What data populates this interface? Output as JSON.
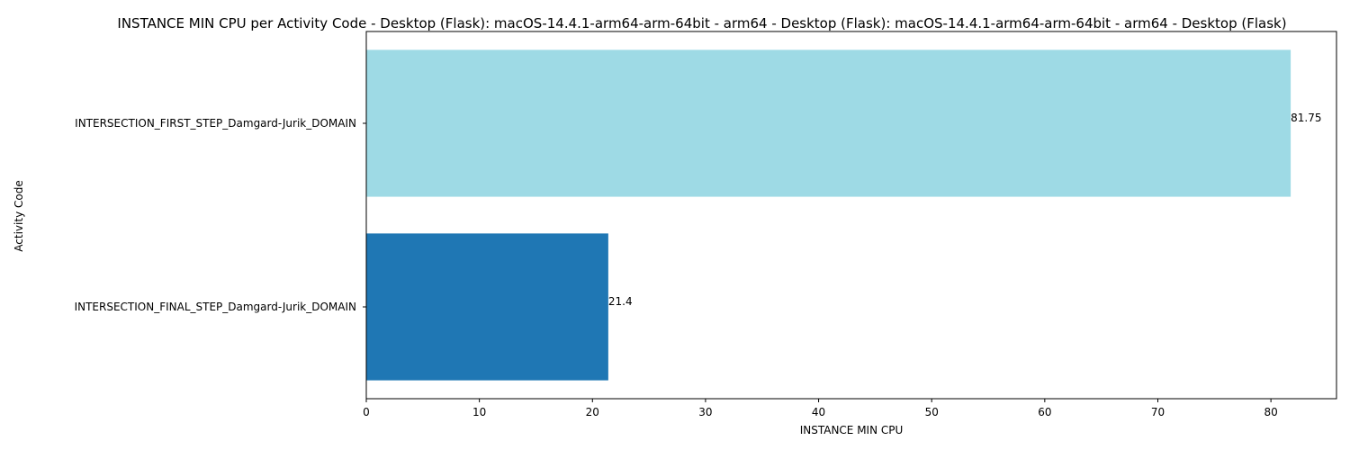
{
  "chart_data": {
    "type": "bar",
    "orientation": "horizontal",
    "title": "INSTANCE MIN CPU per Activity Code - Desktop (Flask): macOS-14.4.1-arm64-arm-64bit - arm64 - Desktop (Flask): macOS-14.4.1-arm64-arm-64bit - arm64 - Desktop (Flask)",
    "xlabel": "INSTANCE MIN CPU",
    "ylabel": "Activity Code",
    "categories": [
      "INTERSECTION_FIRST_STEP_Damgard-Jurik_DOMAIN",
      "INTERSECTION_FINAL_STEP_Damgard-Jurik_DOMAIN"
    ],
    "values": [
      81.75,
      21.4
    ],
    "data_labels": [
      "81.75",
      "21.4"
    ],
    "colors": [
      "#9edae5",
      "#1f77b4"
    ],
    "xlim": [
      0,
      85.8
    ],
    "xticks": [
      0,
      10,
      20,
      30,
      40,
      50,
      60,
      70,
      80
    ],
    "xtick_labels": [
      "0",
      "10",
      "20",
      "30",
      "40",
      "50",
      "60",
      "70",
      "80"
    ],
    "grid": false,
    "legend": false
  }
}
